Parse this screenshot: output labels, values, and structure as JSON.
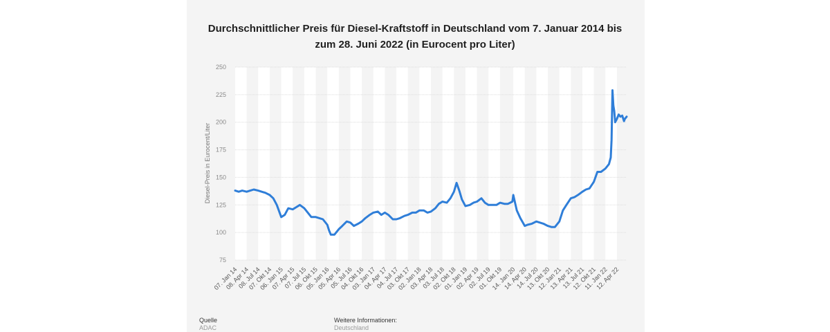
{
  "chart_data": {
    "type": "line",
    "title": "Durchschnittlicher Preis für Diesel-Kraftstoff in Deutschland vom 7. Januar 2014 bis zum 28. Juni 2022 (in Eurocent pro Liter)",
    "title_lines": [
      "Durchschnittlicher Preis für Diesel-Kraftstoff in Deutschland vom 7. Januar 2014 bis",
      "zum 28. Juni 2022 (in Eurocent pro Liter)"
    ],
    "xlabel": "",
    "ylabel": "Diesel-Preis in Eurocent/Liter",
    "ylim": [
      75,
      250
    ],
    "yticks": [
      75,
      100,
      125,
      150,
      175,
      200,
      225,
      250
    ],
    "xlim": [
      "2014-01-07",
      "2022-06-28"
    ],
    "grid": true,
    "legend": "none",
    "line_color": "#2f7ed8",
    "x_tick_labels": [
      "07. Jan 14",
      "08. Apr 14",
      "08. Jul 14",
      "07. Okt 14",
      "06. Jan 15",
      "07. Apr 15",
      "07. Jul 15",
      "06. Okt 15",
      "05. Jan 16",
      "05. Apr 16",
      "05. Jul 16",
      "04. Okt 16",
      "03. Jan 17",
      "04. Apr 17",
      "04. Jul 17",
      "03. Okt 17",
      "02. Jan 18",
      "03. Apr 18",
      "03. Jul 18",
      "02. Okt 18",
      "01. Jan 19",
      "02. Apr 19",
      "02. Jul 19",
      "01. Okt 19",
      "14. Jan 20",
      "14. Apr 20",
      "14. Jul 20",
      "13. Okt 20",
      "12. Jan 21",
      "13. Apr 21",
      "13. Jul 21",
      "12. Okt 21",
      "11. Jan 22",
      "12. Apr 22"
    ],
    "x_tick_dates": [
      "2014-01-07",
      "2014-04-08",
      "2014-07-08",
      "2014-10-07",
      "2015-01-06",
      "2015-04-07",
      "2015-07-07",
      "2015-10-06",
      "2016-01-05",
      "2016-04-05",
      "2016-07-05",
      "2016-10-04",
      "2017-01-03",
      "2017-04-04",
      "2017-07-04",
      "2017-10-03",
      "2018-01-02",
      "2018-04-03",
      "2018-07-03",
      "2018-10-02",
      "2019-01-01",
      "2019-04-02",
      "2019-07-02",
      "2019-10-01",
      "2020-01-14",
      "2020-04-14",
      "2020-07-14",
      "2020-10-13",
      "2021-01-12",
      "2021-04-13",
      "2021-07-13",
      "2021-10-12",
      "2022-01-11",
      "2022-04-12"
    ],
    "series": [
      {
        "x": [
          "2014-01-07",
          "2014-02-04",
          "2014-03-04",
          "2014-04-08",
          "2014-05-06",
          "2014-06-03",
          "2014-07-08",
          "2014-08-05",
          "2014-09-02",
          "2014-10-07",
          "2014-11-04",
          "2014-12-02",
          "2015-01-06",
          "2015-02-03",
          "2015-03-03",
          "2015-04-07",
          "2015-05-05",
          "2015-06-02",
          "2015-07-07",
          "2015-08-04",
          "2015-09-01",
          "2015-10-06",
          "2015-11-03",
          "2015-12-01",
          "2016-01-05",
          "2016-01-19",
          "2016-02-02",
          "2016-03-01",
          "2016-04-05",
          "2016-05-03",
          "2016-06-07",
          "2016-07-05",
          "2016-08-02",
          "2016-09-06",
          "2016-10-04",
          "2016-11-01",
          "2016-12-06",
          "2017-01-03",
          "2017-02-07",
          "2017-03-07",
          "2017-04-04",
          "2017-05-02",
          "2017-06-06",
          "2017-07-04",
          "2017-08-01",
          "2017-09-05",
          "2017-10-03",
          "2017-11-07",
          "2017-12-05",
          "2018-01-02",
          "2018-02-06",
          "2018-03-06",
          "2018-04-03",
          "2018-05-08",
          "2018-06-05",
          "2018-07-03",
          "2018-08-07",
          "2018-09-04",
          "2018-10-02",
          "2018-10-23",
          "2018-11-13",
          "2018-12-04",
          "2019-01-01",
          "2019-02-05",
          "2019-03-05",
          "2019-04-02",
          "2019-05-07",
          "2019-06-04",
          "2019-07-02",
          "2019-08-06",
          "2019-09-03",
          "2019-10-01",
          "2019-11-05",
          "2019-12-03",
          "2020-01-07",
          "2020-01-14",
          "2020-02-11",
          "2020-03-10",
          "2020-04-14",
          "2020-05-05",
          "2020-06-09",
          "2020-07-14",
          "2020-08-11",
          "2020-09-08",
          "2020-10-13",
          "2020-11-10",
          "2020-12-08",
          "2021-01-12",
          "2021-02-09",
          "2021-03-09",
          "2021-04-13",
          "2021-05-11",
          "2021-06-08",
          "2021-07-13",
          "2021-08-10",
          "2021-09-07",
          "2021-10-12",
          "2021-11-09",
          "2021-12-07",
          "2022-01-11",
          "2022-02-08",
          "2022-02-22",
          "2022-03-01",
          "2022-03-08",
          "2022-03-15",
          "2022-03-22",
          "2022-03-29",
          "2022-04-12",
          "2022-04-26",
          "2022-05-10",
          "2022-05-24",
          "2022-06-07",
          "2022-06-14",
          "2022-06-28"
        ],
        "values": [
          138,
          137,
          138,
          137,
          138,
          139,
          138,
          137,
          136,
          134,
          131,
          125,
          114,
          116,
          122,
          121,
          123,
          125,
          122,
          118,
          114,
          114,
          113,
          112,
          107,
          102,
          98,
          98,
          103,
          106,
          110,
          109,
          106,
          108,
          110,
          113,
          116,
          118,
          119,
          116,
          118,
          116,
          112,
          112,
          113,
          115,
          116,
          118,
          118,
          120,
          120,
          118,
          119,
          122,
          126,
          128,
          127,
          131,
          137,
          145,
          138,
          130,
          124,
          125,
          127,
          128,
          131,
          127,
          125,
          125,
          125,
          127,
          126,
          126,
          128,
          134,
          120,
          113,
          106,
          107,
          108,
          110,
          109,
          108,
          106,
          105,
          105,
          110,
          120,
          125,
          131,
          132,
          134,
          137,
          139,
          140,
          146,
          155,
          155,
          158,
          162,
          168,
          184,
          229,
          215,
          210,
          200,
          203,
          207,
          205,
          206,
          201,
          203,
          205
        ]
      }
    ]
  },
  "footer": {
    "source_label": "Quelle",
    "source_value": "ADAC",
    "info_label": "Weitere Informationen:",
    "info_value": "Deutschland"
  }
}
